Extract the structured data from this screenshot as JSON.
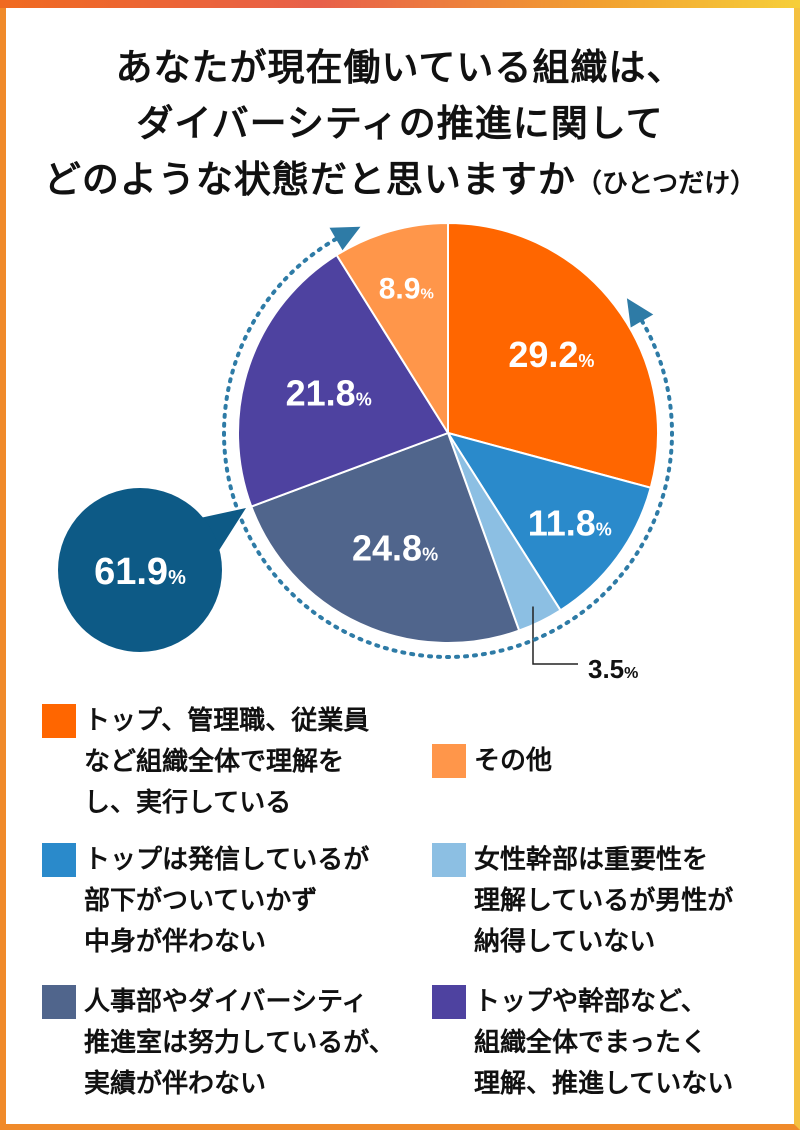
{
  "title": {
    "line1": "あなたが現在働いている組織は、",
    "line2": "ダイバーシティの推進に関して",
    "line3": "どのような状態だと思いますか",
    "sub": "（ひとつだけ）"
  },
  "chart_data": {
    "type": "pie",
    "unit": "%",
    "slices": [
      {
        "label": "トップ、管理職、従業員\nなど組織全体で理解を\nし、実行している",
        "value": 29.2,
        "color": "#ff6600"
      },
      {
        "label": "トップは発信しているが\n部下がついていかず\n中身が伴わない",
        "value": 11.8,
        "color": "#2a8acb"
      },
      {
        "label": "女性幹部は重要性を\n理解しているが男性が\n納得していない",
        "value": 3.5,
        "color": "#8cbfe3"
      },
      {
        "label": "人事部やダイバーシティ\n推進室は努力しているが、\n実績が伴わない",
        "value": 24.8,
        "color": "#50658c"
      },
      {
        "label": "トップや幹部など、\n組織全体でまったく\n理解、推進していない",
        "value": 21.8,
        "color": "#4e42a0"
      },
      {
        "label": "その他",
        "value": 8.9,
        "color": "#ff964a"
      }
    ],
    "labels_display": [
      "29.2",
      "11.8",
      "3.5",
      "24.8",
      "21.8",
      "8.9"
    ],
    "callout": {
      "value": "61.9",
      "color": "#0d5a86",
      "arrow_color": "#2e7ba6"
    }
  }
}
